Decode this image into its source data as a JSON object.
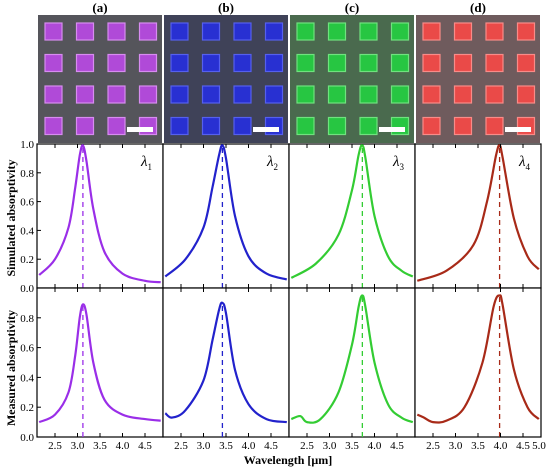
{
  "panel_labels": [
    "(a)",
    "(b)",
    "(c)",
    "(d)"
  ],
  "lambda_labels": [
    {
      "symbol": "λ",
      "sub": "1"
    },
    {
      "symbol": "λ",
      "sub": "2"
    },
    {
      "symbol": "λ",
      "sub": "3"
    },
    {
      "symbol": "λ",
      "sub": "4"
    }
  ],
  "images": [
    {
      "bg": "#55555b",
      "square": "#b04ad8",
      "edge": "#d78cf0"
    },
    {
      "bg": "#3f4258",
      "square": "#2830d2",
      "edge": "#5560ee"
    },
    {
      "bg": "#4a6a4e",
      "square": "#27c642",
      "edge": "#6fe27e"
    },
    {
      "bg": "#6f5b5d",
      "square": "#ea4a48",
      "edge": "#f98b88"
    }
  ],
  "chart_data": {
    "type": "line",
    "xlabel": "Wavelength [μm]",
    "ylabels": [
      "Simulated absorptivity",
      "Measured absorptivity"
    ],
    "xlim": [
      2.1,
      4.9
    ],
    "ylim": [
      0,
      1.0
    ],
    "xticks": [
      "2.5",
      "3.0",
      "3.5",
      "4.0",
      "4.5"
    ],
    "xticks_last": [
      "2.5",
      "3.0",
      "3.5",
      "4.0",
      "4.5",
      "5.0"
    ],
    "yticks": [
      "0.0",
      "0.2",
      "0.4",
      "0.6",
      "0.8"
    ],
    "yticks_top": [
      "0.0",
      "0.2",
      "0.4",
      "0.6",
      "0.8",
      "1.0"
    ],
    "series": [
      {
        "color": "#9a2ee8",
        "peak": 3.12,
        "simulated": {
          "x": [
            2.15,
            2.5,
            2.8,
            2.95,
            3.05,
            3.12,
            3.2,
            3.35,
            3.6,
            4.0,
            4.5,
            4.85
          ],
          "y": [
            0.09,
            0.2,
            0.42,
            0.7,
            0.92,
            0.99,
            0.88,
            0.55,
            0.25,
            0.1,
            0.05,
            0.04
          ]
        },
        "measured": {
          "x": [
            2.15,
            2.5,
            2.8,
            2.95,
            3.05,
            3.12,
            3.2,
            3.35,
            3.6,
            4.0,
            4.5,
            4.85
          ],
          "y": [
            0.1,
            0.15,
            0.3,
            0.55,
            0.8,
            0.89,
            0.82,
            0.5,
            0.25,
            0.15,
            0.12,
            0.11
          ]
        }
      },
      {
        "color": "#2222cc",
        "peak": 3.42,
        "simulated": {
          "x": [
            2.15,
            2.6,
            3.0,
            3.2,
            3.35,
            3.42,
            3.5,
            3.7,
            4.0,
            4.4,
            4.85
          ],
          "y": [
            0.08,
            0.2,
            0.42,
            0.7,
            0.93,
            0.99,
            0.9,
            0.5,
            0.22,
            0.1,
            0.06
          ]
        },
        "measured": {
          "x": [
            2.15,
            2.3,
            2.6,
            3.0,
            3.2,
            3.35,
            3.42,
            3.5,
            3.7,
            4.0,
            4.4,
            4.85
          ],
          "y": [
            0.16,
            0.13,
            0.18,
            0.38,
            0.65,
            0.86,
            0.9,
            0.83,
            0.45,
            0.22,
            0.12,
            0.1
          ]
        }
      },
      {
        "color": "#33cc33",
        "peak": 3.73,
        "simulated": {
          "x": [
            2.15,
            2.7,
            3.2,
            3.5,
            3.65,
            3.73,
            3.8,
            4.0,
            4.3,
            4.6,
            4.85
          ],
          "y": [
            0.07,
            0.17,
            0.37,
            0.68,
            0.93,
            0.99,
            0.9,
            0.5,
            0.22,
            0.12,
            0.08
          ]
        },
        "measured": {
          "x": [
            2.15,
            2.35,
            2.5,
            2.8,
            3.2,
            3.5,
            3.65,
            3.73,
            3.8,
            4.0,
            4.3,
            4.6,
            4.85
          ],
          "y": [
            0.12,
            0.14,
            0.1,
            0.12,
            0.3,
            0.62,
            0.88,
            0.95,
            0.87,
            0.5,
            0.22,
            0.13,
            0.1
          ]
        }
      },
      {
        "color": "#a82a18",
        "peak": 3.98,
        "simulated": {
          "x": [
            2.15,
            2.8,
            3.4,
            3.7,
            3.9,
            3.98,
            4.05,
            4.3,
            4.6,
            4.85
          ],
          "y": [
            0.05,
            0.12,
            0.3,
            0.6,
            0.92,
            0.99,
            0.9,
            0.48,
            0.22,
            0.13
          ]
        },
        "measured": {
          "x": [
            2.15,
            2.3,
            2.5,
            2.8,
            3.2,
            3.6,
            3.85,
            3.98,
            4.05,
            4.3,
            4.6,
            4.85
          ],
          "y": [
            0.15,
            0.13,
            0.1,
            0.11,
            0.2,
            0.5,
            0.88,
            0.95,
            0.88,
            0.45,
            0.2,
            0.12
          ]
        }
      }
    ]
  }
}
